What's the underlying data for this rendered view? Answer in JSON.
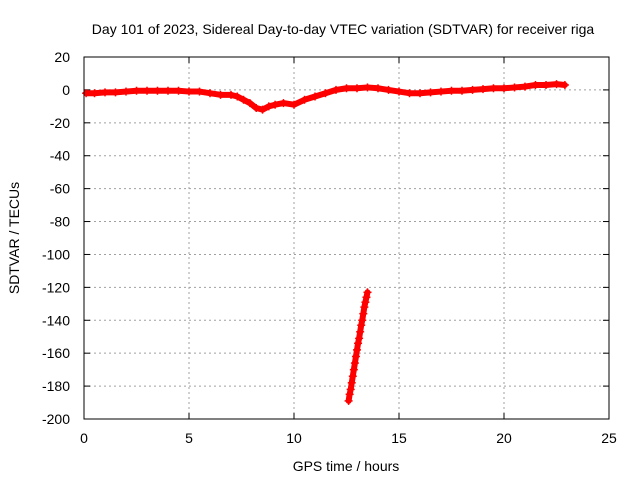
{
  "chart_data": {
    "type": "scatter",
    "title": "Day 101 of 2023, Sidereal Day-to-day VTEC variation (SDTVAR) for receiver riga",
    "xlabel": "GPS time / hours",
    "ylabel": "SDTVAR / TECUs",
    "xlim": [
      0,
      25
    ],
    "ylim": [
      -200,
      20
    ],
    "xticks": [
      0,
      5,
      10,
      15,
      20,
      25
    ],
    "yticks": [
      20,
      0,
      -20,
      -40,
      -60,
      -80,
      -100,
      -120,
      -140,
      -160,
      -180,
      -200
    ],
    "grid": true,
    "marker": "plus",
    "color": "#ff0000",
    "series": [
      {
        "x": [
          0.1,
          0.5,
          1.0,
          1.5,
          2.0,
          2.5,
          3.0,
          3.5,
          4.0,
          4.5,
          5.0,
          5.5,
          6.0,
          6.5,
          7.0,
          7.3,
          7.6,
          7.9,
          8.2,
          8.5,
          8.8,
          9.1,
          9.5,
          10.0,
          10.5,
          11.0,
          11.5,
          12.0,
          12.5,
          13.0,
          13.5,
          14.0,
          14.5,
          15.0,
          15.5,
          16.0,
          16.5,
          17.0,
          17.5,
          18.0,
          18.5,
          19.0,
          19.5,
          20.0,
          20.5,
          21.0,
          21.5,
          22.0,
          22.5,
          22.9
        ],
        "y": [
          -2,
          -2,
          -1.5,
          -1.5,
          -1,
          -0.5,
          -0.5,
          -0.5,
          -0.5,
          -0.5,
          -1,
          -1,
          -2,
          -3,
          -3,
          -4,
          -6,
          -8,
          -11,
          -12,
          -10,
          -9,
          -8,
          -9,
          -6,
          -4,
          -2,
          0,
          1,
          1,
          1.5,
          1,
          0,
          -1,
          -2,
          -2,
          -1.5,
          -1,
          -0.5,
          -0.5,
          0,
          0.5,
          1,
          1,
          1.5,
          2,
          3,
          3,
          3.5,
          3
        ]
      },
      {
        "x": [
          12.6,
          12.65,
          12.7,
          12.75,
          12.8,
          12.85,
          12.9,
          12.95,
          13.0,
          13.05,
          13.1,
          13.15,
          13.2,
          13.25,
          13.3,
          13.35,
          13.4,
          13.45,
          13.5
        ],
        "y": [
          -189,
          -185,
          -182,
          -178,
          -174,
          -170,
          -166,
          -162,
          -158,
          -154,
          -151,
          -147,
          -143,
          -140,
          -136,
          -132,
          -129,
          -126,
          -123
        ]
      }
    ]
  }
}
